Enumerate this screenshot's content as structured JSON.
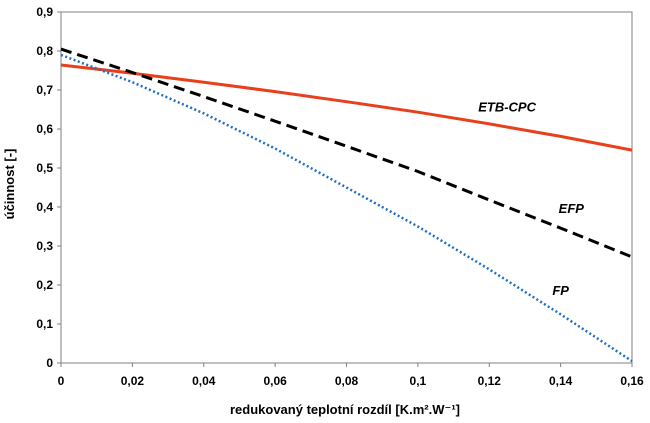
{
  "chart_data": {
    "type": "line",
    "xlabel": "redukovaný teplotní rozdíl [K.m².W⁻¹]",
    "ylabel": "účinnost [-]",
    "xlim": [
      0,
      0.16
    ],
    "ylim": [
      0,
      0.9
    ],
    "x_ticks": [
      0,
      0.02,
      0.04,
      0.06,
      0.08,
      0.1,
      0.12,
      0.14,
      0.16
    ],
    "x_tick_labels": [
      "0",
      "0,02",
      "0,04",
      "0,06",
      "0,08",
      "0,1",
      "0,12",
      "0,14",
      "0,16"
    ],
    "y_ticks": [
      0,
      0.1,
      0.2,
      0.3,
      0.4,
      0.5,
      0.6,
      0.7,
      0.8,
      0.9
    ],
    "y_tick_labels": [
      "0",
      "0,1",
      "0,2",
      "0,3",
      "0,4",
      "0,5",
      "0,6",
      "0,7",
      "0,8",
      "0,9"
    ],
    "grid": false,
    "series": [
      {
        "name": "ETB-CPC",
        "color": "#e8401c",
        "dash": "solid",
        "x": [
          0,
          0.02,
          0.04,
          0.06,
          0.08,
          0.1,
          0.12,
          0.14,
          0.16
        ],
        "values": [
          0.764,
          0.743,
          0.72,
          0.696,
          0.67,
          0.643,
          0.613,
          0.581,
          0.546
        ]
      },
      {
        "name": "EFP",
        "color": "#000000",
        "dash": "dashed",
        "x": [
          0,
          0.02,
          0.04,
          0.06,
          0.08,
          0.1,
          0.12,
          0.14,
          0.16
        ],
        "values": [
          0.805,
          0.745,
          0.683,
          0.62,
          0.556,
          0.491,
          0.418,
          0.346,
          0.272
        ]
      },
      {
        "name": "FP",
        "color": "#1f6fbf",
        "dash": "dotted",
        "x": [
          0,
          0.02,
          0.04,
          0.06,
          0.08,
          0.1,
          0.12,
          0.14,
          0.16
        ],
        "values": [
          0.79,
          0.72,
          0.64,
          0.55,
          0.45,
          0.35,
          0.24,
          0.125,
          0.005
        ]
      }
    ],
    "labels": [
      {
        "series": "ETB-CPC",
        "text": "ETB-CPC",
        "x": 0.125,
        "y": 0.645
      },
      {
        "series": "EFP",
        "text": "EFP",
        "x": 0.143,
        "y": 0.385
      },
      {
        "series": "FP",
        "text": "FP",
        "x": 0.14,
        "y": 0.175
      }
    ]
  }
}
